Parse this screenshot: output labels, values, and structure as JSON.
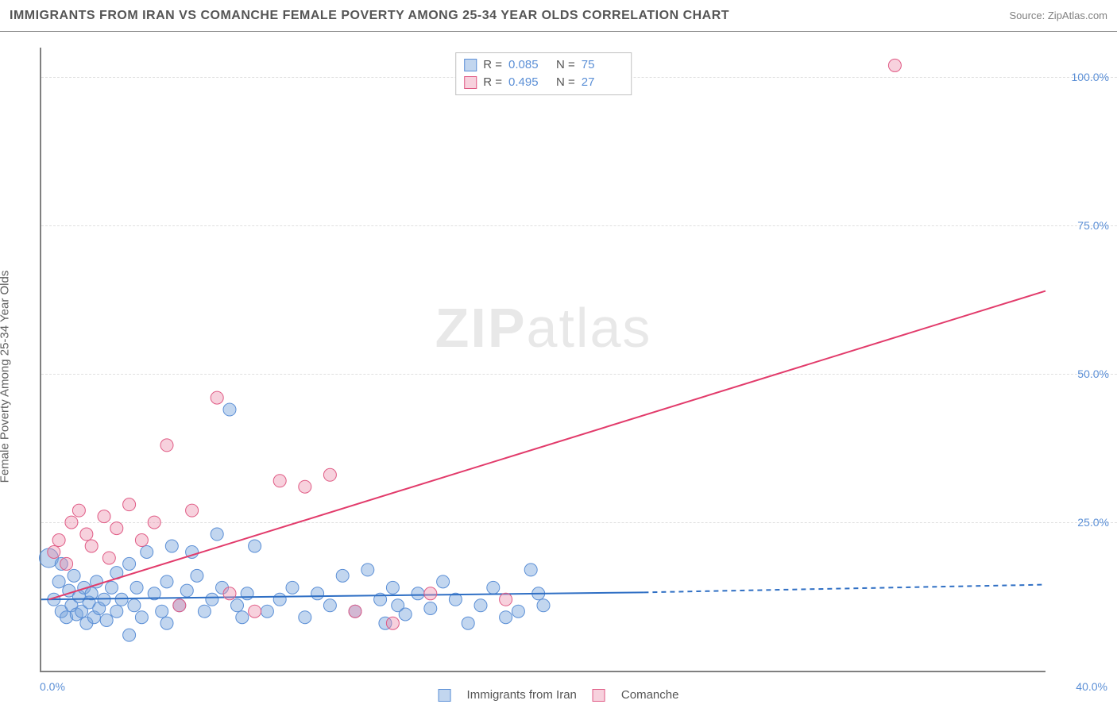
{
  "title": "IMMIGRANTS FROM IRAN VS COMANCHE FEMALE POVERTY AMONG 25-34 YEAR OLDS CORRELATION CHART",
  "source": "Source: ZipAtlas.com",
  "y_axis_label": "Female Poverty Among 25-34 Year Olds",
  "watermark_bold": "ZIP",
  "watermark_rest": "atlas",
  "chart": {
    "type": "scatter",
    "xlim": [
      0,
      40
    ],
    "ylim": [
      0,
      105
    ],
    "x_ticks": [
      {
        "v": 0,
        "label": "0.0%"
      },
      {
        "v": 40,
        "label": "40.0%"
      }
    ],
    "y_ticks": [
      {
        "v": 25,
        "label": "25.0%"
      },
      {
        "v": 50,
        "label": "50.0%"
      },
      {
        "v": 75,
        "label": "75.0%"
      },
      {
        "v": 100,
        "label": "100.0%"
      }
    ],
    "background_color": "#ffffff",
    "grid_color": "#e0e0e0",
    "series": [
      {
        "name": "Immigrants from Iran",
        "color_fill": "rgba(120,165,220,0.45)",
        "color_stroke": "#5b8fd6",
        "marker_radius": 7,
        "R": "0.085",
        "N": "75",
        "trend": {
          "x1": 0,
          "y1": 12,
          "x2": 24,
          "y2": 13.2,
          "ext_x2": 40,
          "ext_y2": 14.5,
          "color": "#2f6fc4",
          "width": 2
        },
        "points": [
          [
            0.3,
            19,
            12
          ],
          [
            0.5,
            12,
            8
          ],
          [
            0.7,
            15,
            8
          ],
          [
            0.8,
            18,
            8
          ],
          [
            0.8,
            10,
            8
          ],
          [
            1.0,
            9,
            8
          ],
          [
            1.1,
            13.5,
            8
          ],
          [
            1.2,
            11,
            8
          ],
          [
            1.3,
            16,
            8
          ],
          [
            1.4,
            9.5,
            8
          ],
          [
            1.5,
            12.5,
            8
          ],
          [
            1.6,
            10,
            8
          ],
          [
            1.7,
            14,
            8
          ],
          [
            1.8,
            8,
            8
          ],
          [
            1.9,
            11.5,
            8
          ],
          [
            2.0,
            13,
            8
          ],
          [
            2.1,
            9,
            8
          ],
          [
            2.2,
            15,
            8
          ],
          [
            2.3,
            10.5,
            8
          ],
          [
            2.5,
            12,
            8
          ],
          [
            2.6,
            8.5,
            8
          ],
          [
            2.8,
            14,
            8
          ],
          [
            3.0,
            16.5,
            8
          ],
          [
            3.0,
            10,
            8
          ],
          [
            3.2,
            12,
            8
          ],
          [
            3.5,
            6,
            8
          ],
          [
            3.5,
            18,
            8
          ],
          [
            3.7,
            11,
            8
          ],
          [
            3.8,
            14,
            8
          ],
          [
            4.0,
            9,
            8
          ],
          [
            4.2,
            20,
            8
          ],
          [
            4.5,
            13,
            8
          ],
          [
            4.8,
            10,
            8
          ],
          [
            5.0,
            15,
            8
          ],
          [
            5.0,
            8,
            8
          ],
          [
            5.2,
            21,
            8
          ],
          [
            5.5,
            11,
            8
          ],
          [
            5.8,
            13.5,
            8
          ],
          [
            6.0,
            20,
            8
          ],
          [
            6.2,
            16,
            8
          ],
          [
            6.5,
            10,
            8
          ],
          [
            6.8,
            12,
            8
          ],
          [
            7.0,
            23,
            8
          ],
          [
            7.2,
            14,
            8
          ],
          [
            7.5,
            44,
            8
          ],
          [
            7.8,
            11,
            8
          ],
          [
            8.0,
            9,
            8
          ],
          [
            8.2,
            13,
            8
          ],
          [
            8.5,
            21,
            8
          ],
          [
            9.0,
            10,
            8
          ],
          [
            9.5,
            12,
            8
          ],
          [
            10.0,
            14,
            8
          ],
          [
            10.5,
            9,
            8
          ],
          [
            11.0,
            13,
            8
          ],
          [
            11.5,
            11,
            8
          ],
          [
            12.0,
            16,
            8
          ],
          [
            12.5,
            10,
            8
          ],
          [
            13.0,
            17,
            8
          ],
          [
            13.5,
            12,
            8
          ],
          [
            13.7,
            8,
            8
          ],
          [
            14.0,
            14,
            8
          ],
          [
            14.2,
            11,
            8
          ],
          [
            14.5,
            9.5,
            8
          ],
          [
            15.0,
            13,
            8
          ],
          [
            15.5,
            10.5,
            8
          ],
          [
            16.0,
            15,
            8
          ],
          [
            16.5,
            12,
            8
          ],
          [
            17.0,
            8,
            8
          ],
          [
            17.5,
            11,
            8
          ],
          [
            18.0,
            14,
            8
          ],
          [
            18.5,
            9,
            8
          ],
          [
            19.0,
            10,
            8
          ],
          [
            19.5,
            17,
            8
          ],
          [
            19.8,
            13,
            8
          ],
          [
            20.0,
            11,
            8
          ]
        ]
      },
      {
        "name": "Comanche",
        "color_fill": "rgba(235,140,170,0.4)",
        "color_stroke": "#e05b85",
        "marker_radius": 7,
        "R": "0.495",
        "N": "27",
        "trend": {
          "x1": 0.3,
          "y1": 12,
          "x2": 40,
          "y2": 64,
          "color": "#e23b6b",
          "width": 2
        },
        "points": [
          [
            0.5,
            20,
            8
          ],
          [
            0.7,
            22,
            8
          ],
          [
            1.0,
            18,
            8
          ],
          [
            1.2,
            25,
            8
          ],
          [
            1.5,
            27,
            8
          ],
          [
            1.8,
            23,
            8
          ],
          [
            2.0,
            21,
            8
          ],
          [
            2.5,
            26,
            8
          ],
          [
            2.7,
            19,
            8
          ],
          [
            3.0,
            24,
            8
          ],
          [
            3.5,
            28,
            8
          ],
          [
            4.0,
            22,
            8
          ],
          [
            4.5,
            25,
            8
          ],
          [
            5.0,
            38,
            8
          ],
          [
            5.5,
            11,
            8
          ],
          [
            6.0,
            27,
            8
          ],
          [
            7.0,
            46,
            8
          ],
          [
            7.5,
            13,
            8
          ],
          [
            8.5,
            10,
            8
          ],
          [
            9.5,
            32,
            8
          ],
          [
            10.5,
            31,
            8
          ],
          [
            11.5,
            33,
            8
          ],
          [
            12.5,
            10,
            8
          ],
          [
            14.0,
            8,
            8
          ],
          [
            15.5,
            13,
            8
          ],
          [
            18.5,
            12,
            8
          ],
          [
            34.0,
            102,
            8
          ]
        ]
      }
    ]
  },
  "legend_top": {
    "rows": [
      {
        "swatch": "blue",
        "r_label": "R =",
        "r_val": "0.085",
        "n_label": "N =",
        "n_val": "75"
      },
      {
        "swatch": "pink",
        "r_label": "R =",
        "r_val": "0.495",
        "n_label": "N =",
        "n_val": "27"
      }
    ]
  },
  "legend_bottom": {
    "items": [
      {
        "swatch": "blue",
        "label": "Immigrants from Iran"
      },
      {
        "swatch": "pink",
        "label": "Comanche"
      }
    ]
  }
}
